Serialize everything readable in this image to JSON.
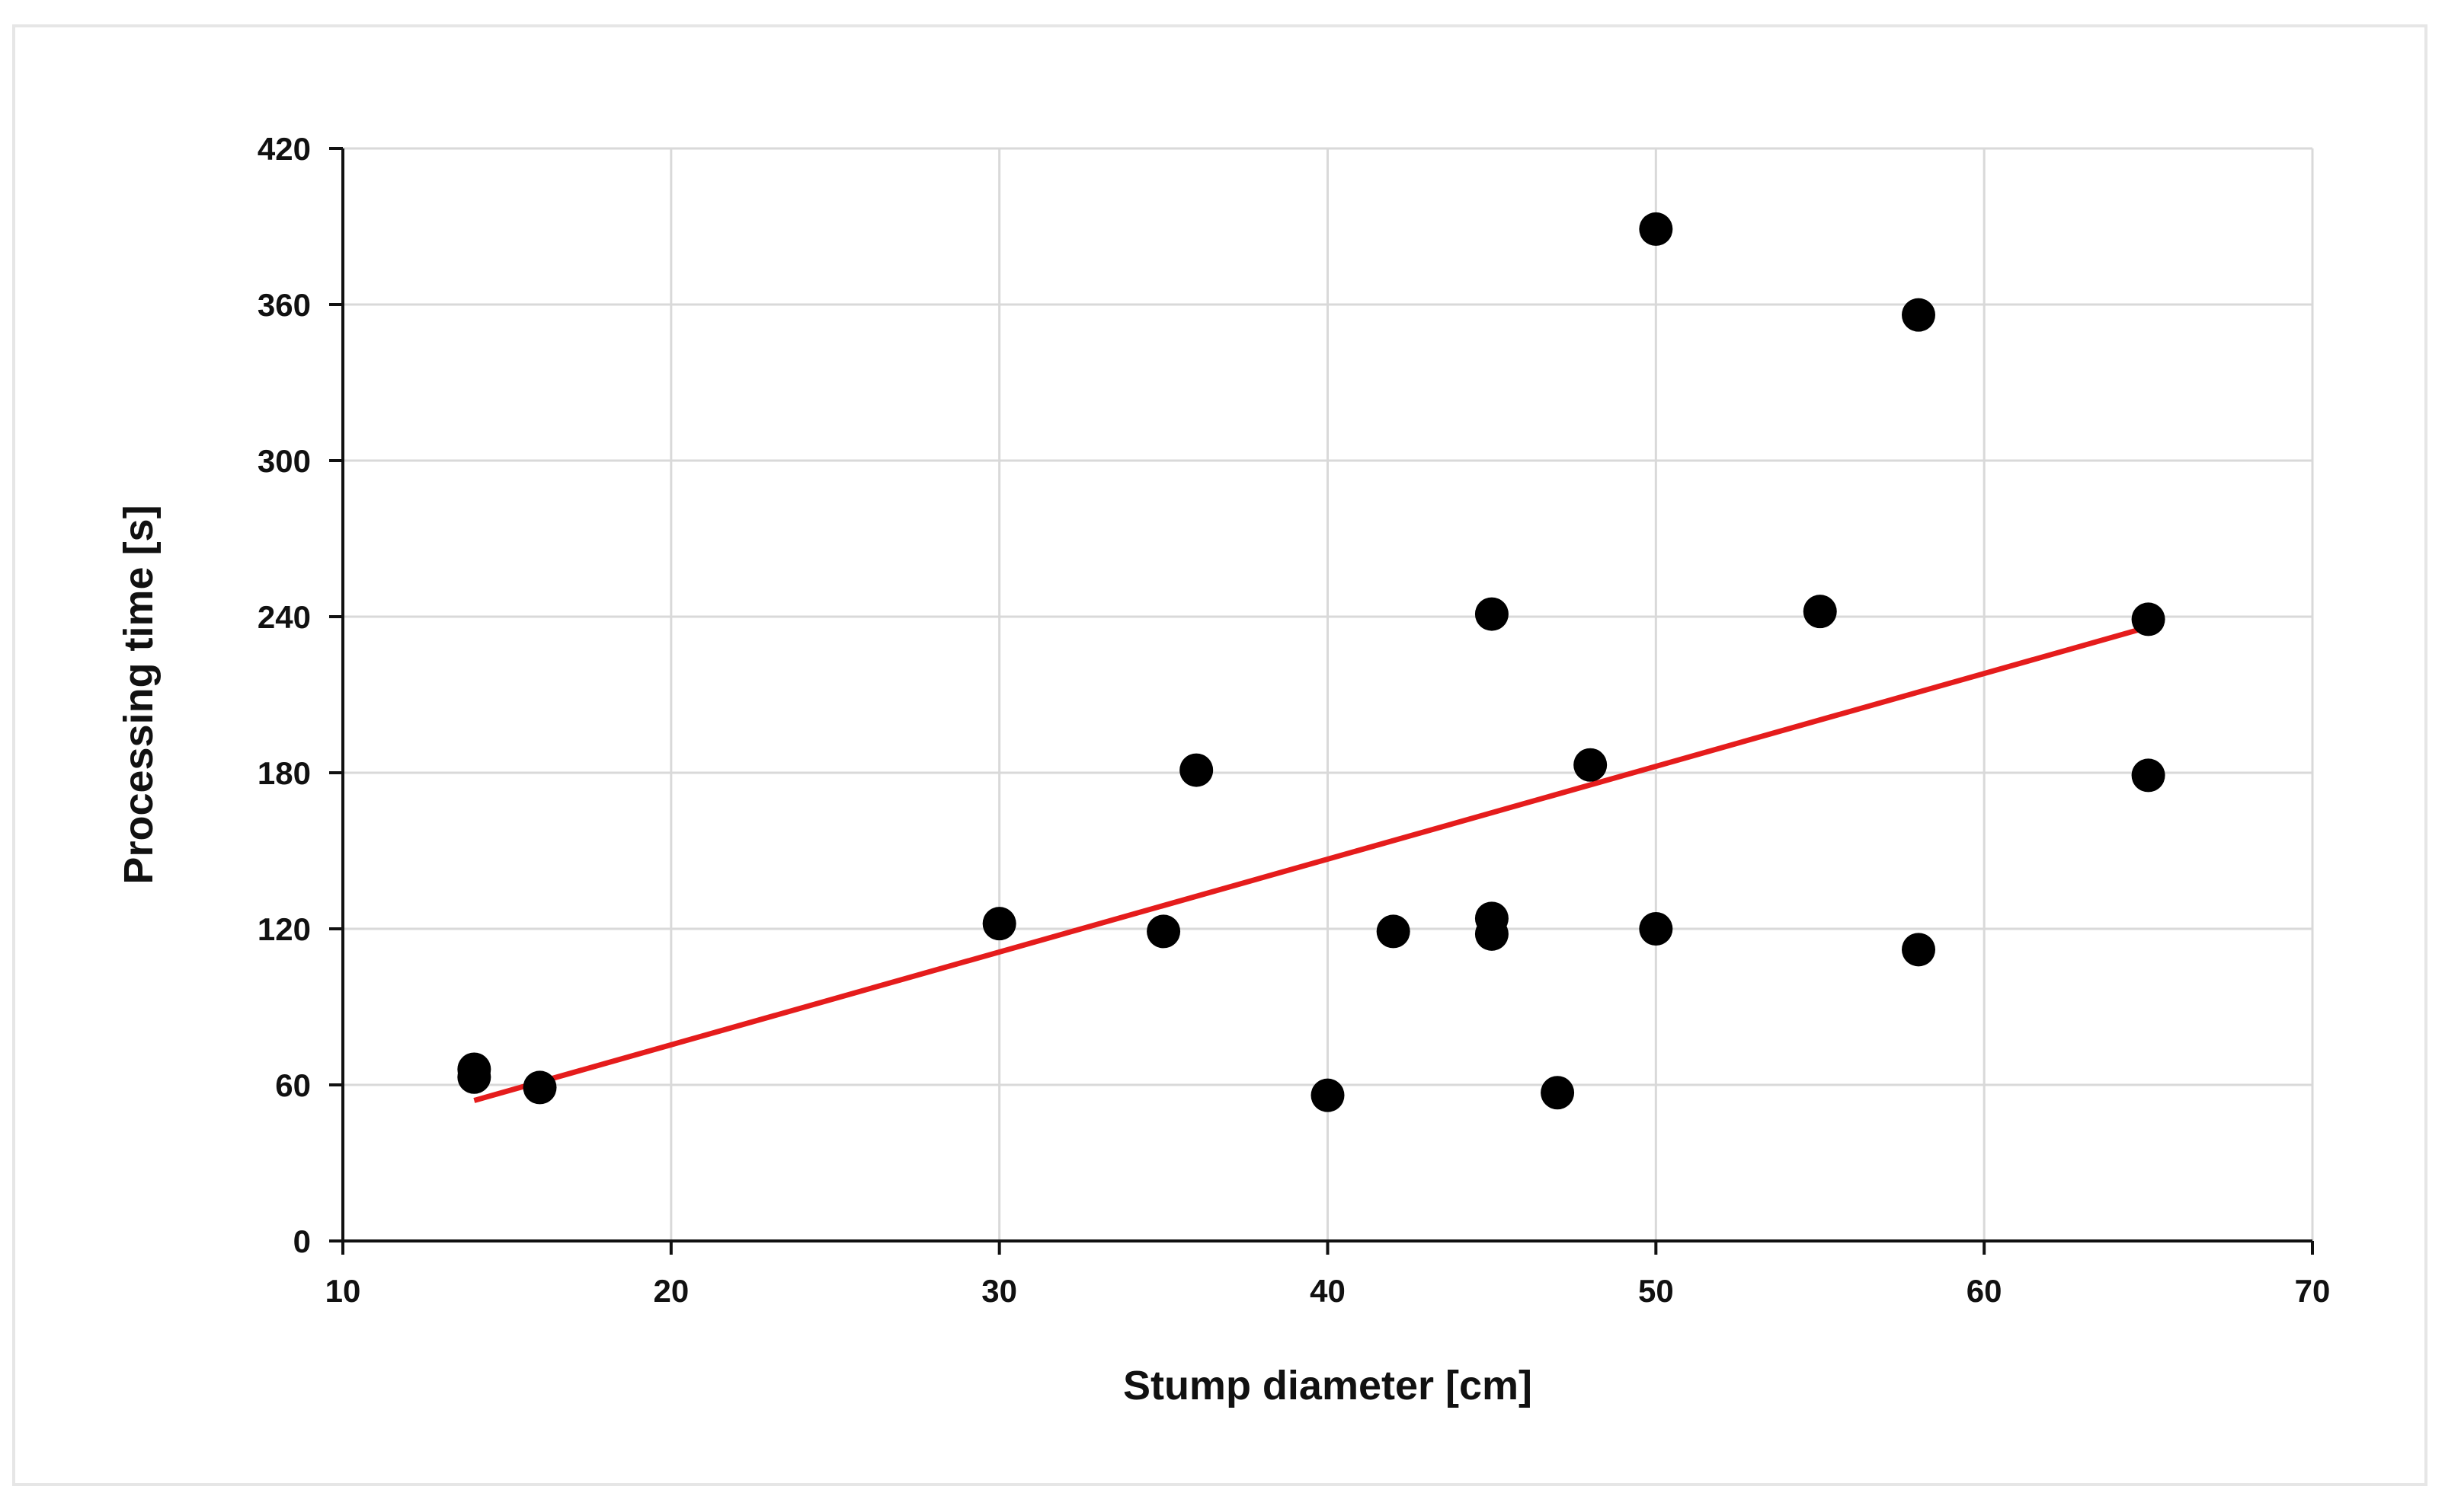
{
  "chart_data": {
    "type": "scatter",
    "title": "",
    "xlabel": "Stump diameter [cm]",
    "ylabel": "Processing time [s]",
    "xlim": [
      10,
      70
    ],
    "ylim": [
      0,
      420
    ],
    "xticks": [
      10,
      20,
      30,
      40,
      50,
      60,
      70
    ],
    "yticks": [
      0,
      60,
      120,
      180,
      240,
      300,
      360,
      420
    ],
    "grid": true,
    "legend": "none",
    "points": [
      {
        "x": 14,
        "y": 66
      },
      {
        "x": 14,
        "y": 63
      },
      {
        "x": 16,
        "y": 59
      },
      {
        "x": 30,
        "y": 122
      },
      {
        "x": 35,
        "y": 119
      },
      {
        "x": 36,
        "y": 181
      },
      {
        "x": 40,
        "y": 56
      },
      {
        "x": 42,
        "y": 119
      },
      {
        "x": 45,
        "y": 241
      },
      {
        "x": 45,
        "y": 124
      },
      {
        "x": 45,
        "y": 118
      },
      {
        "x": 47,
        "y": 57
      },
      {
        "x": 48,
        "y": 183
      },
      {
        "x": 50,
        "y": 389
      },
      {
        "x": 50,
        "y": 120
      },
      {
        "x": 55,
        "y": 242
      },
      {
        "x": 58,
        "y": 356
      },
      {
        "x": 58,
        "y": 112
      },
      {
        "x": 65,
        "y": 239
      },
      {
        "x": 65,
        "y": 179
      }
    ],
    "trendline": {
      "x": [
        14,
        65
      ],
      "y": [
        54,
        236
      ]
    },
    "colors": {
      "points": "#000000",
      "trendline": "#e51c1c",
      "grid": "#d9d9d9",
      "axis": "#111111"
    }
  }
}
